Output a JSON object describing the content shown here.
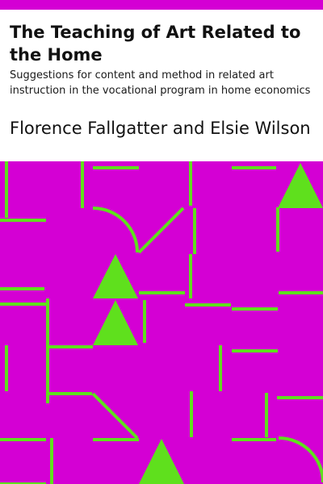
{
  "cover": {
    "title": "The Teaching of Art Related to the Home",
    "subtitle": "Suggestions for content and method in related art instruction in the vocational program in home economics",
    "author": "Florence Fallgatter and Elsie Wilson"
  },
  "colors": {
    "accent": "#d400d4",
    "pattern_background": "#d400d4",
    "pattern_lines": "#5fe01d"
  },
  "artwork": {
    "pattern": "geometric-lines-triangles-arcs"
  }
}
